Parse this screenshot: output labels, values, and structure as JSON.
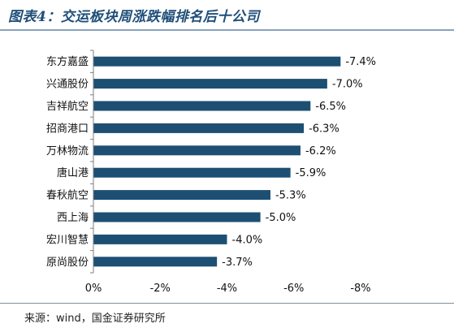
{
  "title": "图表4：交运板块周涨跌幅排名后十公司",
  "source": "来源：wind，国金证券研究所",
  "colors": {
    "bar": "#1d4f73",
    "title": "#1f4e79",
    "axis": "#7f7f7f",
    "rule": "#8aa2bd"
  },
  "chart_data": {
    "type": "bar",
    "orientation": "horizontal",
    "title": "交运板块周涨跌幅排名后十公司",
    "categories": [
      "东方嘉盛",
      "兴通股份",
      "吉祥航空",
      "招商港口",
      "万林物流",
      "唐山港",
      "春秋航空",
      "西上海",
      "宏川智慧",
      "原尚股份"
    ],
    "values": [
      -7.4,
      -7.0,
      -6.5,
      -6.3,
      -6.2,
      -5.9,
      -5.3,
      -5.0,
      -4.0,
      -3.7
    ],
    "value_labels": [
      "-7.4%",
      "-7.0%",
      "-6.5%",
      "-6.3%",
      "-6.2%",
      "-5.9%",
      "-5.3%",
      "-5.0%",
      "-4.0%",
      "-3.7%"
    ],
    "x_ticks": [
      0,
      -2,
      -4,
      -6,
      -8
    ],
    "x_tick_labels": [
      "0%",
      "-2%",
      "-4%",
      "-6%",
      "-8%"
    ],
    "xlim": [
      0,
      -8
    ],
    "xlabel": "",
    "ylabel": "",
    "grid": false,
    "legend": "none"
  }
}
